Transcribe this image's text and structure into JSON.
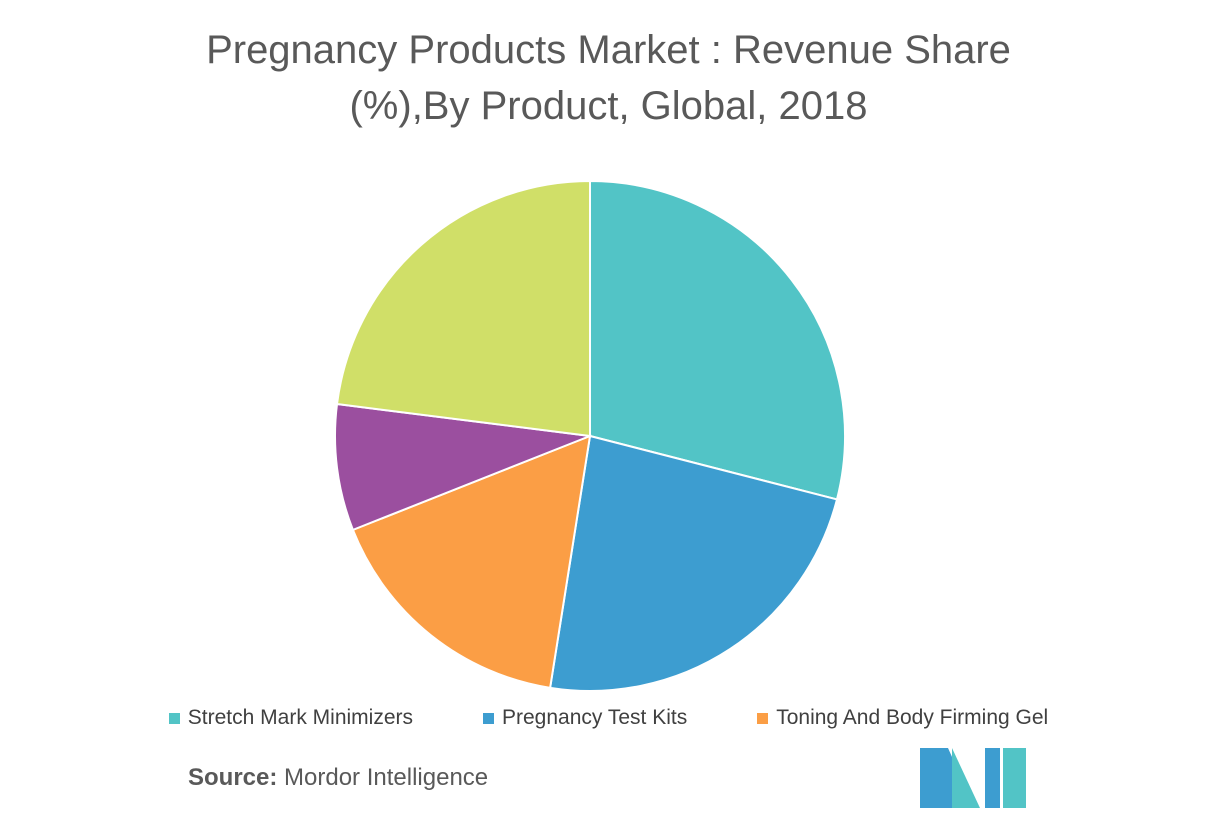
{
  "chart_data": {
    "type": "pie",
    "title": "Pregnancy Products Market : Revenue Share (%),By Product, Global, 2018",
    "categories": [
      "Stretch Mark Minimizers",
      "Pregnancy Test Kits",
      "Toning And Body Firming Gel",
      null,
      null
    ],
    "values": [
      29,
      23.5,
      16.5,
      8,
      23
    ],
    "colors": [
      "#52c4c6",
      "#3d9dd0",
      "#fb9e45",
      "#9b4f9f",
      "#d0df68"
    ],
    "legend": "bottom",
    "source_label": "Source:",
    "source": "Mordor Intelligence"
  }
}
